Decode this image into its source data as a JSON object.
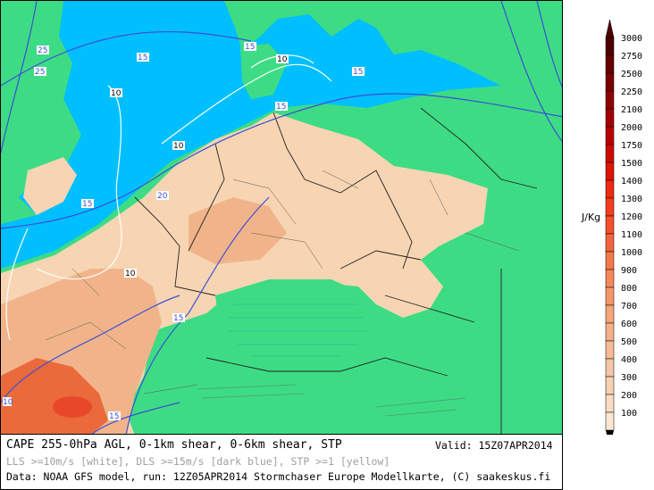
{
  "footer": {
    "title": "CAPE 255-0hPa AGL, 0-1km shear, 0-6km shear, STP",
    "valid": "Valid: 15Z07APR2014",
    "overlay_note": "LLS >=10m/s [white], DLS >=15m/s [dark blue], STP >=1 [yellow]",
    "source": "Data: NOAA GFS model, run: 12Z05APR2014  Stormchaser Europe Modellkarte, (C) saakeskus.fi"
  },
  "legend": {
    "unit": "J/Kg",
    "levels": [
      {
        "value": "3000",
        "color": "#4d0000"
      },
      {
        "value": "2750",
        "color": "#660000"
      },
      {
        "value": "2500",
        "color": "#7a0000"
      },
      {
        "value": "2250",
        "color": "#8f0000"
      },
      {
        "value": "2100",
        "color": "#a30000"
      },
      {
        "value": "2000",
        "color": "#b80000"
      },
      {
        "value": "1750",
        "color": "#cc0a00"
      },
      {
        "value": "1500",
        "color": "#e01400"
      },
      {
        "value": "1400",
        "color": "#f02810"
      },
      {
        "value": "1300",
        "color": "#f53c1e"
      },
      {
        "value": "1200",
        "color": "#f5502d"
      },
      {
        "value": "1100",
        "color": "#f5643c"
      },
      {
        "value": "1000",
        "color": "#f5784b"
      },
      {
        "value": "900",
        "color": "#f5875a"
      },
      {
        "value": "800",
        "color": "#f59669"
      },
      {
        "value": "700",
        "color": "#f5a578"
      },
      {
        "value": "600",
        "color": "#f5b087"
      },
      {
        "value": "500",
        "color": "#f5bb96"
      },
      {
        "value": "400",
        "color": "#f5c6a5"
      },
      {
        "value": "300",
        "color": "#f7d1b4"
      },
      {
        "value": "200",
        "color": "#f8dcc3"
      },
      {
        "value": "100",
        "color": "#fae6d2"
      }
    ]
  },
  "map": {
    "colors": {
      "sea": "#00bfff",
      "land": "#3ddc84",
      "cape_low": "#f7d5b3",
      "cape_mid": "#f1b48a",
      "cape_high": "#ea6a3c",
      "cape_core": "#e8472a",
      "dls_line": "#3b4fd6",
      "lls_line": "#ffffff"
    },
    "contour_labels": [
      "25",
      "25",
      "15",
      "15",
      "10",
      "10",
      "15",
      "10",
      "15",
      "20",
      "15",
      "10",
      "15",
      "15",
      "10"
    ]
  }
}
